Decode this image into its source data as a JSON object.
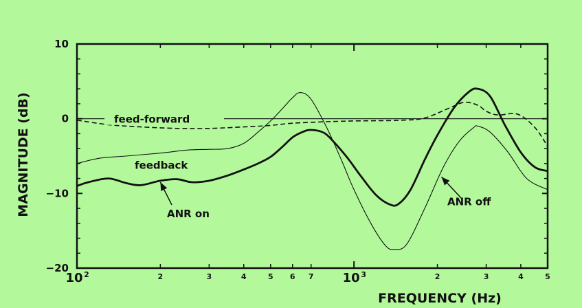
{
  "chart_data": {
    "type": "line",
    "xscale": "log",
    "xlim": [
      100,
      5000
    ],
    "ylim": [
      -20,
      10
    ],
    "xlabel": "FREQUENCY (Hz)",
    "ylabel": "MAGNITUDE (dB)",
    "grid": false,
    "xticks_major": [
      {
        "value": 100,
        "base": "10",
        "exp": "2"
      },
      {
        "value": 1000,
        "base": "10",
        "exp": "3"
      }
    ],
    "xticks_minor": [
      {
        "value": 200,
        "label": "2"
      },
      {
        "value": 300,
        "label": "3"
      },
      {
        "value": 400,
        "label": "4"
      },
      {
        "value": 500,
        "label": "5"
      },
      {
        "value": 600,
        "label": "6"
      },
      {
        "value": 700,
        "label": "7"
      },
      {
        "value": 2000,
        "label": "2"
      },
      {
        "value": 3000,
        "label": "3"
      },
      {
        "value": 4000,
        "label": "4"
      },
      {
        "value": 5000,
        "label": "5"
      }
    ],
    "yticks": [
      {
        "value": 10,
        "label": "10"
      },
      {
        "value": 0,
        "label": "0"
      },
      {
        "value": -10,
        "label": "−10"
      },
      {
        "value": -20,
        "label": "−20"
      }
    ],
    "series": [
      {
        "name": "feed-forward",
        "style": "dashed",
        "points": [
          [
            100,
            -0.2
          ],
          [
            130,
            -0.8
          ],
          [
            170,
            -1.1
          ],
          [
            230,
            -1.3
          ],
          [
            300,
            -1.3
          ],
          [
            400,
            -1.1
          ],
          [
            500,
            -0.9
          ],
          [
            600,
            -0.6
          ],
          [
            800,
            -0.4
          ],
          [
            1000,
            -0.3
          ],
          [
            1500,
            -0.2
          ],
          [
            1800,
            0.1
          ],
          [
            2200,
            1.4
          ],
          [
            2500,
            2.2
          ],
          [
            2800,
            1.8
          ],
          [
            3000,
            1.0
          ],
          [
            3300,
            0.5
          ],
          [
            3900,
            0.6
          ],
          [
            4500,
            -1.2
          ],
          [
            5000,
            -3.7
          ]
        ]
      },
      {
        "name": "feedback",
        "style": "thin",
        "points": [
          [
            100,
            -6.0
          ],
          [
            120,
            -5.3
          ],
          [
            150,
            -5.0
          ],
          [
            200,
            -4.6
          ],
          [
            250,
            -4.2
          ],
          [
            300,
            -4.1
          ],
          [
            350,
            -4.0
          ],
          [
            400,
            -3.3
          ],
          [
            450,
            -1.8
          ],
          [
            500,
            -0.3
          ],
          [
            550,
            1.3
          ],
          [
            600,
            2.8
          ],
          [
            640,
            3.5
          ],
          [
            700,
            2.6
          ],
          [
            800,
            -1.3
          ],
          [
            900,
            -5.5
          ],
          [
            1000,
            -9.5
          ],
          [
            1150,
            -14.0
          ],
          [
            1300,
            -17.0
          ],
          [
            1400,
            -17.5
          ],
          [
            1550,
            -16.8
          ],
          [
            1800,
            -12.0
          ],
          [
            2100,
            -6.5
          ],
          [
            2400,
            -3.0
          ],
          [
            2700,
            -1.2
          ],
          [
            2800,
            -1.0
          ],
          [
            3100,
            -1.8
          ],
          [
            3600,
            -4.5
          ],
          [
            4200,
            -8.0
          ],
          [
            5000,
            -9.5
          ]
        ]
      },
      {
        "name": "ANR on",
        "style": "thick",
        "points": [
          [
            100,
            -9.0
          ],
          [
            110,
            -8.5
          ],
          [
            130,
            -8.0
          ],
          [
            150,
            -8.6
          ],
          [
            170,
            -8.9
          ],
          [
            200,
            -8.3
          ],
          [
            230,
            -8.1
          ],
          [
            260,
            -8.5
          ],
          [
            300,
            -8.3
          ],
          [
            350,
            -7.6
          ],
          [
            400,
            -6.8
          ],
          [
            450,
            -6.0
          ],
          [
            500,
            -5.1
          ],
          [
            550,
            -3.8
          ],
          [
            600,
            -2.5
          ],
          [
            650,
            -1.8
          ],
          [
            700,
            -1.5
          ],
          [
            780,
            -1.9
          ],
          [
            850,
            -3.2
          ],
          [
            950,
            -5.3
          ],
          [
            1050,
            -7.5
          ],
          [
            1200,
            -10.2
          ],
          [
            1350,
            -11.5
          ],
          [
            1450,
            -11.4
          ],
          [
            1600,
            -9.5
          ],
          [
            1800,
            -5.5
          ],
          [
            2000,
            -2.2
          ],
          [
            2300,
            1.5
          ],
          [
            2600,
            3.6
          ],
          [
            2800,
            4.0
          ],
          [
            3100,
            3.0
          ],
          [
            3500,
            -0.8
          ],
          [
            4000,
            -4.5
          ],
          [
            4500,
            -6.5
          ],
          [
            5000,
            -7.0
          ]
        ]
      }
    ],
    "annotations": [
      {
        "text": "feed-forward",
        "target": "feed-forward"
      },
      {
        "text": "feedback",
        "target": "feedback"
      },
      {
        "text": "ANR on",
        "target": "ANR on",
        "arrow": true
      },
      {
        "text": "ANR off",
        "target": "ANR off",
        "arrow": true
      }
    ]
  }
}
